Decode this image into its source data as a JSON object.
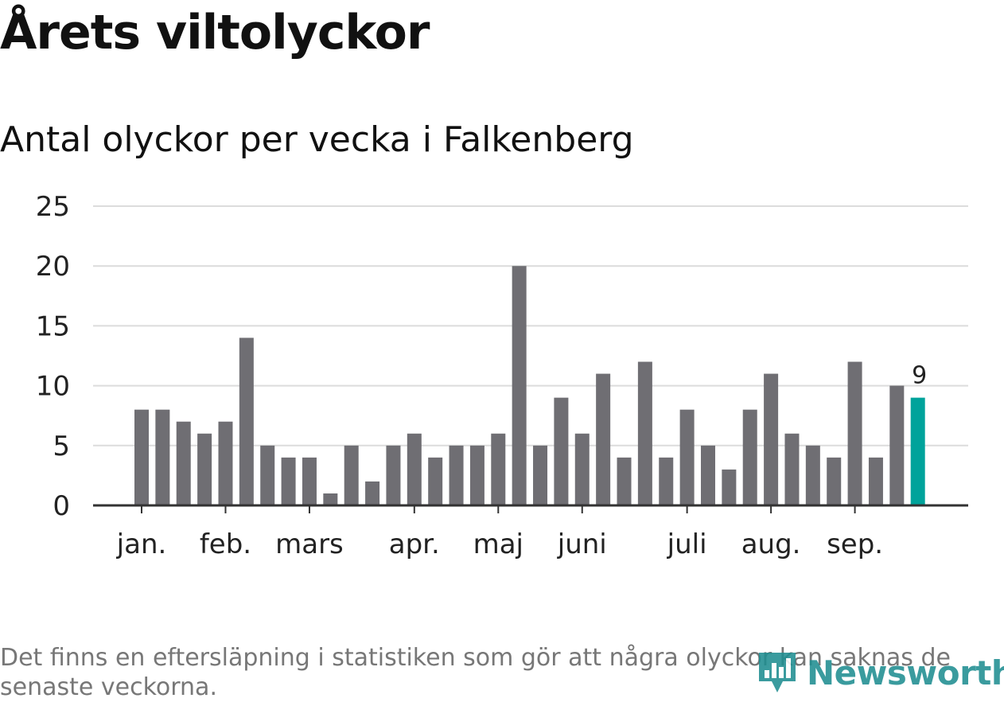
{
  "header": {
    "title": "Årets viltolyckor",
    "subtitle": "Antal olyckor per vecka i Falkenberg"
  },
  "footer": {
    "note": "Det finns en eftersläpning i statistiken som gör att några olyckor kan saknas de senaste veckorna."
  },
  "logo": {
    "text": "Newsworthy",
    "icon": "bar-chart-pin-icon"
  },
  "colors": {
    "bar": "#6f6e73",
    "highlight": "#00a39b",
    "grid": "#dcdcdc",
    "axis": "#333333",
    "text": "#222222",
    "logo": "#1f8e91"
  },
  "chart_data": {
    "type": "bar",
    "title": "Antal olyckor per vecka i Falkenberg",
    "xlabel": "",
    "ylabel": "",
    "ylim": [
      0,
      25
    ],
    "yticks": [
      0,
      5,
      10,
      15,
      20,
      25
    ],
    "grid": true,
    "weeks": [
      1,
      2,
      3,
      4,
      5,
      6,
      7,
      8,
      9,
      10,
      11,
      12,
      13,
      14,
      15,
      16,
      17,
      18,
      19,
      20,
      21,
      22,
      23,
      24,
      25,
      26,
      27,
      28,
      29,
      30,
      31,
      32,
      33,
      34,
      35,
      36,
      37,
      38
    ],
    "values": [
      8,
      8,
      7,
      6,
      7,
      14,
      5,
      4,
      4,
      1,
      5,
      2,
      5,
      6,
      4,
      5,
      5,
      6,
      20,
      5,
      9,
      6,
      11,
      4,
      12,
      4,
      8,
      5,
      3,
      8,
      11,
      6,
      5,
      4,
      12,
      4,
      10,
      9
    ],
    "highlight_index": 37,
    "data_labels": [
      {
        "index": 37,
        "text": "9"
      }
    ],
    "month_labels": [
      {
        "label": "jan.",
        "week": 1
      },
      {
        "label": "feb.",
        "week": 5
      },
      {
        "label": "mars",
        "week": 9
      },
      {
        "label": "apr.",
        "week": 14
      },
      {
        "label": "maj",
        "week": 18
      },
      {
        "label": "juni",
        "week": 22
      },
      {
        "label": "juli",
        "week": 27
      },
      {
        "label": "aug.",
        "week": 31
      },
      {
        "label": "sep.",
        "week": 35
      }
    ]
  }
}
